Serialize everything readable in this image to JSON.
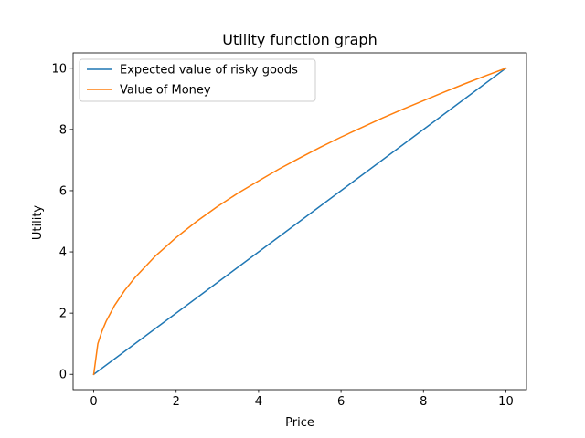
{
  "chart_data": {
    "type": "line",
    "title": "Utility function graph",
    "xlabel": "Price",
    "ylabel": "Utility",
    "xlim": [
      -0.5,
      10.5
    ],
    "ylim": [
      -0.5,
      10.5
    ],
    "xticks": [
      0,
      2,
      4,
      6,
      8,
      10
    ],
    "yticks": [
      0,
      2,
      4,
      6,
      8,
      10
    ],
    "grid": false,
    "legend_position": "top-left",
    "series": [
      {
        "name": "Expected value of risky goods",
        "color": "#1f77b4",
        "x": [
          0,
          10
        ],
        "y": [
          0,
          10
        ]
      },
      {
        "name": "Value of Money",
        "color": "#ff7f0e",
        "x": [
          0,
          0.1,
          0.2,
          0.3,
          0.5,
          0.75,
          1,
          1.5,
          2,
          2.5,
          3,
          3.5,
          4,
          4.5,
          5,
          5.5,
          6,
          6.5,
          7,
          7.5,
          8,
          8.5,
          9,
          9.5,
          10
        ],
        "y": [
          0,
          1.0,
          1.41,
          1.73,
          2.24,
          2.74,
          3.16,
          3.87,
          4.47,
          5.0,
          5.48,
          5.92,
          6.32,
          6.71,
          7.07,
          7.42,
          7.75,
          8.06,
          8.37,
          8.66,
          8.94,
          9.22,
          9.49,
          9.75,
          10.0
        ]
      }
    ]
  }
}
